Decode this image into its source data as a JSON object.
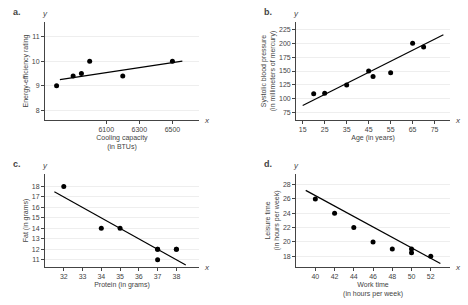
{
  "chart_data": [
    {
      "type": "scatter",
      "title": "a.",
      "annotations": [
        "y",
        "x"
      ],
      "xlabel": "Cooling capacity\n(in BTUs)",
      "ylabel": "Energy-efficiency rating",
      "series": [
        {
          "type": "scatter",
          "marker": "circle",
          "color": "black",
          "x": [
            5800,
            5900,
            5950,
            6000,
            6200,
            6500
          ],
          "values": [
            9.0,
            9.4,
            9.5,
            10.0,
            9.4,
            10.0
          ]
        },
        {
          "type": "line",
          "line_style": "solid",
          "color": "black",
          "x": [
            5820,
            6560
          ],
          "values": [
            9.25,
            10.0
          ]
        }
      ],
      "xlim": [
        5730,
        6660
      ],
      "xticks": [
        6100,
        6300,
        6500
      ],
      "ylim": [
        7.6,
        11.6
      ],
      "yticks": [
        8,
        9,
        10,
        11
      ],
      "grid": "y"
    },
    {
      "type": "scatter",
      "title": "b.",
      "annotations": [
        "y",
        "x"
      ],
      "xlabel": "Age (in years)",
      "ylabel": "Systolic blood pressure\n(in millimeters of mercury)",
      "series": [
        {
          "type": "scatter",
          "marker": "circle",
          "color": "black",
          "x": [
            20,
            25,
            35,
            45,
            47,
            55,
            65,
            70
          ],
          "values": [
            109,
            110,
            125,
            150,
            140,
            147,
            200,
            193
          ]
        },
        {
          "type": "line",
          "line_style": "solid",
          "color": "black",
          "x": [
            15,
            79
          ],
          "values": [
            88,
            215
          ]
        }
      ],
      "xlim": [
        12,
        82
      ],
      "xticks": [
        15,
        25,
        35,
        45,
        55,
        65,
        75
      ],
      "ylim": [
        62,
        238
      ],
      "yticks": [
        75,
        100,
        125,
        150,
        175,
        200,
        225
      ],
      "grid": "y"
    },
    {
      "type": "scatter",
      "title": "c.",
      "annotations": [
        "y",
        "x"
      ],
      "xlabel": "Protein (in grams)",
      "ylabel": "Fat (in grams)",
      "series": [
        {
          "type": "scatter",
          "marker": "circle",
          "color": "black",
          "x": [
            32,
            34,
            35,
            37,
            37,
            37,
            38,
            38
          ],
          "values": [
            18,
            14,
            14,
            11,
            12,
            12,
            12,
            12
          ]
        },
        {
          "type": "line",
          "line_style": "solid",
          "color": "black",
          "x": [
            31.5,
            38.5
          ],
          "values": [
            17.5,
            10.5
          ]
        }
      ],
      "xlim": [
        31.0,
        39.2
      ],
      "xticks": [
        32,
        33,
        34,
        35,
        36,
        37,
        38
      ],
      "ylim": [
        10.3,
        19.2
      ],
      "yticks": [
        11,
        12,
        13,
        14,
        15,
        16,
        17,
        18
      ],
      "grid": "y"
    },
    {
      "type": "scatter",
      "title": "d.",
      "annotations": [
        "y",
        "x"
      ],
      "xlabel": "Work time\n(in hours per week)",
      "ylabel": "Leisure time\n(in hours per week)",
      "series": [
        {
          "type": "scatter",
          "marker": "circle",
          "color": "black",
          "x": [
            40,
            42,
            44,
            46,
            48,
            50,
            50,
            52
          ],
          "values": [
            26,
            24,
            22,
            20,
            19,
            18.5,
            19,
            18
          ]
        },
        {
          "type": "line",
          "line_style": "solid",
          "color": "black",
          "x": [
            39,
            53
          ],
          "values": [
            27.2,
            17.0
          ]
        }
      ],
      "xlim": [
        38,
        54
      ],
      "xticks": [
        40,
        42,
        44,
        46,
        48,
        50,
        52
      ],
      "ylim": [
        16.5,
        29.5
      ],
      "yticks": [
        18,
        20,
        22,
        24,
        26,
        28
      ],
      "grid": "y"
    }
  ]
}
